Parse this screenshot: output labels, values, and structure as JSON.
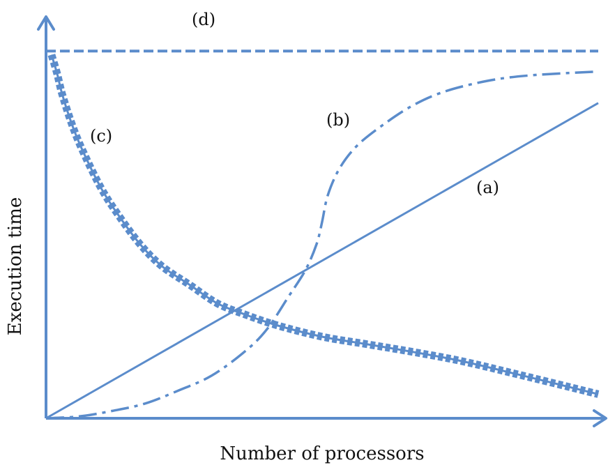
{
  "chart_data": {
    "type": "line",
    "title": "",
    "xlabel": "Number of processors",
    "ylabel": "Execution time",
    "xlim": [
      0,
      100
    ],
    "ylim": [
      0,
      100
    ],
    "grid": false,
    "legend": "none",
    "accent_color": "#5b8ccb",
    "series": [
      {
        "id": "a",
        "name": "(a)",
        "style": "solid",
        "x": [
          0,
          100
        ],
        "y": [
          0,
          85
        ]
      },
      {
        "id": "b",
        "name": "(b)",
        "style": "dash-dot",
        "x": [
          0,
          6,
          12,
          18,
          24,
          30,
          36,
          40,
          44,
          47,
          49,
          50,
          51,
          53,
          56,
          60,
          66,
          72,
          80,
          88,
          100
        ],
        "y": [
          0,
          0.5,
          2,
          4,
          7.5,
          11.5,
          18,
          24,
          33,
          40,
          47,
          53,
          60,
          67,
          73,
          78,
          84,
          88,
          91,
          92.5,
          93.5
        ]
      },
      {
        "id": "c",
        "name": "(c)",
        "style": "double-dashed",
        "x": [
          1,
          2,
          3,
          5,
          7,
          10,
          13,
          17,
          21,
          26,
          31,
          36,
          42,
          50,
          58,
          66,
          75,
          85,
          100
        ],
        "y": [
          98,
          93,
          87,
          78,
          71,
          62,
          55,
          47,
          41,
          36,
          31,
          28,
          25,
          22,
          20,
          18,
          15.5,
          12,
          6.5
        ]
      },
      {
        "id": "d",
        "name": "(d)",
        "style": "dashed",
        "x": [
          0,
          100
        ],
        "y": [
          99,
          99
        ]
      }
    ]
  }
}
